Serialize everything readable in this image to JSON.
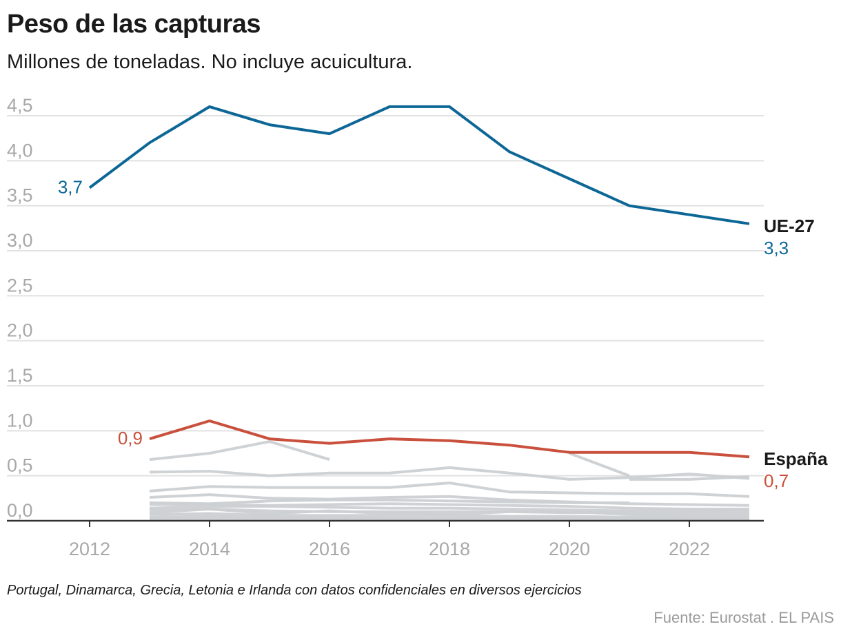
{
  "header": {
    "title": "Peso de las capturas",
    "subtitle": "Millones de toneladas. No incluye acuicultura."
  },
  "footer": {
    "note": "Portugal, Dinamarca, Grecia, Letonia e Irlanda con datos confidenciales en diversos ejercicios",
    "source": "Fuente: Eurostat . EL PAIS"
  },
  "chart_data": {
    "type": "line",
    "title": "Peso de las capturas",
    "subtitle": "Millones de toneladas. No incluye acuicultura.",
    "xlabel": "",
    "ylabel": "",
    "x": [
      2012,
      2013,
      2014,
      2015,
      2016,
      2017,
      2018,
      2019,
      2020,
      2021,
      2022,
      2023
    ],
    "xlim": [
      2012,
      2023
    ],
    "ylim": [
      0,
      4.5
    ],
    "grid": true,
    "y_ticks": [
      0,
      0.5,
      1.0,
      1.5,
      2.0,
      2.5,
      3.0,
      3.5,
      4.0,
      4.5
    ],
    "y_tick_labels": [
      "0,0",
      "0,5",
      "1,0",
      "1,5",
      "2,0",
      "2,5",
      "3,0",
      "3,5",
      "4,0",
      "4,5"
    ],
    "x_ticks": [
      2012,
      2014,
      2016,
      2018,
      2020,
      2022
    ],
    "x_tick_labels": [
      "2012",
      "2014",
      "2016",
      "2018",
      "2020",
      "2022"
    ],
    "highlight_series": [
      {
        "name": "UE-27",
        "color": "#0d6796",
        "values": [
          3.7,
          4.2,
          4.6,
          4.4,
          4.3,
          4.6,
          4.6,
          4.1,
          3.8,
          3.5,
          3.4,
          3.3
        ],
        "start_label": "3,7",
        "end_label": "3,3"
      },
      {
        "name": "España",
        "color": "#c9503c",
        "values": [
          null,
          0.91,
          1.11,
          0.91,
          0.86,
          0.91,
          0.89,
          0.84,
          0.76,
          0.76,
          0.76,
          0.71
        ],
        "start_label": "0,9",
        "end_label": "0,7"
      }
    ],
    "background_series_color": "#ccd0d3",
    "background_series": [
      {
        "name": "otro-1",
        "values": [
          null,
          0.68,
          0.75,
          0.88,
          0.68,
          null,
          null,
          null,
          null,
          null,
          null,
          null
        ]
      },
      {
        "name": "otro-2",
        "values": [
          null,
          null,
          null,
          null,
          null,
          null,
          null,
          null,
          0.75,
          0.5,
          null,
          null
        ]
      },
      {
        "name": "otro-3",
        "values": [
          null,
          0.54,
          0.55,
          0.5,
          0.53,
          0.53,
          0.59,
          0.53,
          0.46,
          0.48,
          0.52,
          0.47
        ]
      },
      {
        "name": "otro-4",
        "values": [
          null,
          null,
          null,
          null,
          null,
          null,
          null,
          null,
          null,
          0.46,
          0.46,
          0.49
        ]
      },
      {
        "name": "otro-5",
        "values": [
          null,
          0.33,
          0.38,
          0.37,
          0.37,
          0.37,
          0.42,
          0.32,
          0.31,
          0.3,
          0.3,
          0.27
        ]
      },
      {
        "name": "otro-6",
        "values": [
          null,
          0.26,
          0.29,
          0.25,
          0.24,
          0.26,
          0.27,
          0.23,
          0.21,
          0.19,
          0.18,
          0.17
        ]
      },
      {
        "name": "otro-7",
        "values": [
          null,
          0.2,
          0.19,
          0.22,
          0.23,
          0.23,
          0.22,
          0.21,
          0.2,
          0.2,
          null,
          null
        ]
      },
      {
        "name": "otro-8",
        "values": [
          null,
          0.18,
          0.18,
          0.17,
          0.18,
          0.19,
          0.18,
          0.17,
          0.16,
          0.14,
          0.13,
          0.13
        ]
      },
      {
        "name": "otro-9",
        "values": [
          null,
          0.14,
          0.16,
          0.16,
          0.15,
          0.14,
          0.14,
          0.13,
          0.12,
          0.11,
          0.11,
          0.11
        ]
      },
      {
        "name": "otro-10",
        "values": [
          null,
          0.12,
          0.13,
          0.11,
          0.1,
          0.1,
          0.1,
          0.1,
          0.09,
          0.09,
          0.08,
          0.08
        ]
      },
      {
        "name": "otro-11",
        "values": [
          null,
          0.09,
          0.13,
          0.08,
          0.11,
          0.08,
          0.07,
          0.1,
          0.1,
          0.07,
          0.06,
          0.06
        ]
      },
      {
        "name": "otro-12",
        "values": [
          null,
          0.07,
          0.08,
          0.06,
          0.06,
          0.06,
          0.06,
          0.05,
          0.05,
          0.04,
          0.04,
          0.04
        ]
      },
      {
        "name": "otro-13",
        "values": [
          null,
          0.04,
          0.05,
          0.04,
          0.04,
          0.03,
          0.03,
          0.03,
          0.03,
          0.03,
          0.02,
          0.02
        ]
      },
      {
        "name": "otro-14",
        "values": [
          null,
          0.02,
          0.02,
          0.02,
          0.02,
          0.02,
          0.02,
          0.02,
          0.02,
          0.01,
          0.01,
          0.01
        ]
      }
    ]
  }
}
